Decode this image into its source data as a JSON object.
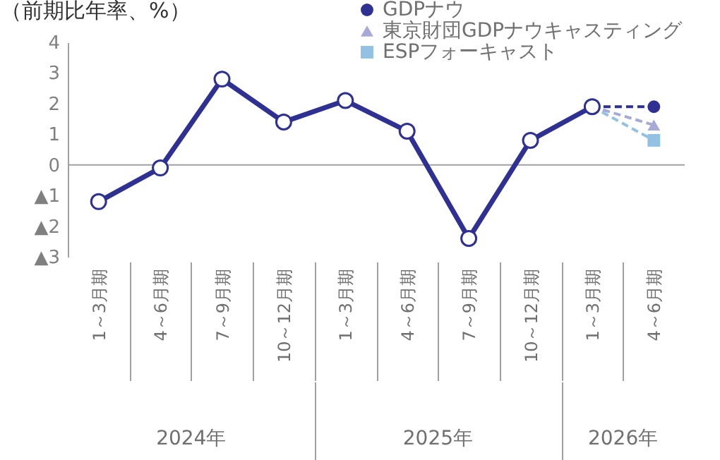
{
  "chart_data": {
    "type": "line",
    "ylabel": "（前期比年率、%）",
    "categories": [
      "1～3月期",
      "4～6月期",
      "7～9月期",
      "10～12月期",
      "1～3月期",
      "4～6月期",
      "7～9月期",
      "10～12月期",
      "1～3月期",
      "4～6月期"
    ],
    "series": [
      {
        "color": "#2e3192",
        "line_style": "solid",
        "marker": "circle",
        "values": [
          -1.2,
          -0.1,
          2.8,
          1.4,
          2.1,
          1.1,
          -2.4,
          0.8,
          1.9,
          null
        ]
      },
      {
        "name": "GDPナウ",
        "color": "#2e3192",
        "line_style": "dashed",
        "marker": "circle",
        "values": [
          null,
          null,
          null,
          null,
          null,
          null,
          null,
          null,
          1.9,
          1.9
        ]
      },
      {
        "name": "東京財団GDPナウキャスティング",
        "color": "#a7a9d6",
        "line_style": "dashed",
        "marker": "triangle",
        "values": [
          null,
          null,
          null,
          null,
          null,
          null,
          null,
          null,
          1.9,
          1.3
        ]
      },
      {
        "name": "ESPフォーキャスト",
        "color": "#92c1e3",
        "line_style": "dashed",
        "marker": "square",
        "values": [
          null,
          null,
          null,
          null,
          null,
          null,
          null,
          null,
          1.9,
          0.8
        ]
      }
    ],
    "ylim": [
      -3,
      4
    ],
    "yticks": [
      {
        "value": -3,
        "label": "▲3"
      },
      {
        "value": -2,
        "label": "▲2"
      },
      {
        "value": -1,
        "label": "▲1"
      },
      0,
      1,
      2,
      3,
      4
    ],
    "ref_lines": [
      {
        "axis": "y",
        "value": 0,
        "color": "#a0a0a0"
      }
    ],
    "grid": false,
    "legend": "top right",
    "annotations": [
      "2024年",
      "2025年",
      "2026年"
    ]
  }
}
